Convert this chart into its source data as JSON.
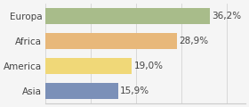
{
  "categories": [
    "Asia",
    "America",
    "Africa",
    "Europa"
  ],
  "values": [
    15.9,
    19.0,
    28.9,
    36.2
  ],
  "labels": [
    "15,9%",
    "19,0%",
    "28,9%",
    "36,2%"
  ],
  "bar_colors": [
    "#7b90b8",
    "#f0d878",
    "#e8b87a",
    "#a8bc8a"
  ],
  "background_color": "#f5f5f5",
  "xlim": [
    0,
    44
  ],
  "label_fontsize": 7.5,
  "tick_fontsize": 7.5
}
